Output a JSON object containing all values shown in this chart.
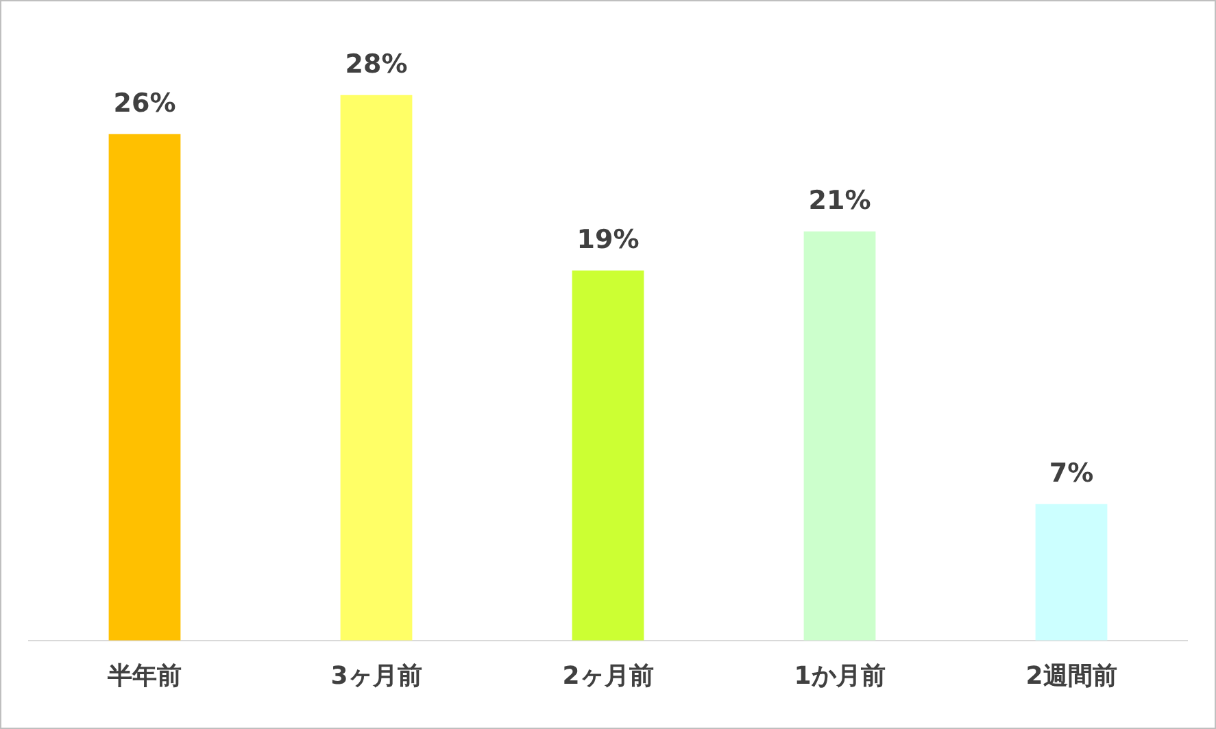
{
  "chart_data": {
    "type": "bar",
    "categories": [
      "半年前",
      "3ヶ月前",
      "2ヶ月前",
      "1か月前",
      "2週間前"
    ],
    "values": [
      26,
      28,
      19,
      21,
      7
    ],
    "colors": [
      "#ffc000",
      "#ffff66",
      "#ccff33",
      "#ccffcc",
      "#ccffff"
    ],
    "value_labels": [
      "26%",
      "28%",
      "19%",
      "21%",
      "7%"
    ],
    "grid": false,
    "legend": false,
    "tick_labels": "x"
  }
}
